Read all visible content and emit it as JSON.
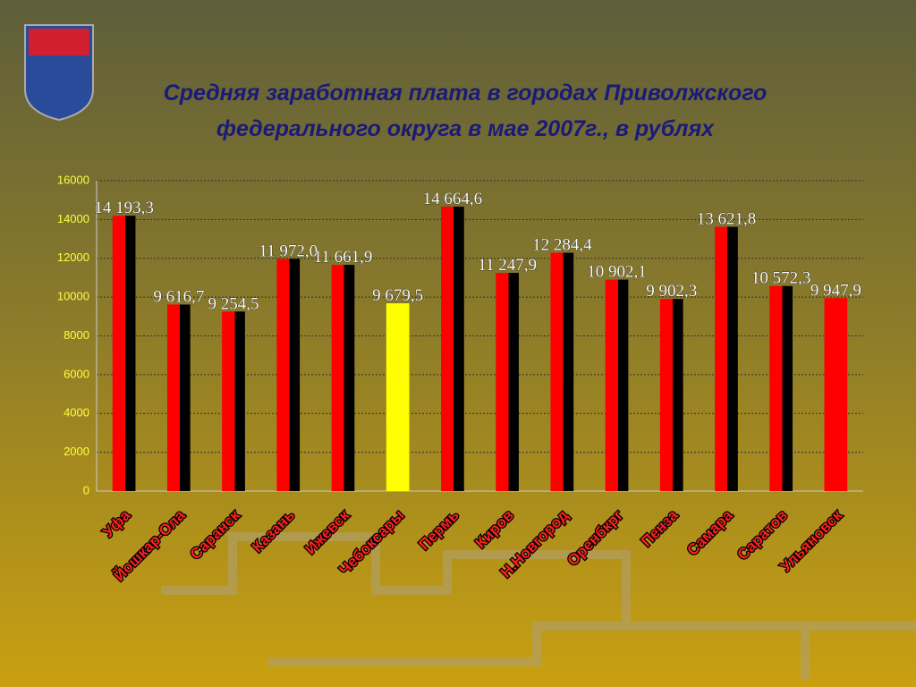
{
  "chart_data": {
    "type": "bar",
    "title": [
      "Средняя заработная плата в городах Приволжского",
      "федерального округа в мае 2007г., в рублях"
    ],
    "categories": [
      "Уфа",
      "Йошкар-Ола",
      "Саранск",
      "Казань",
      "Ижевск",
      "Чебоксары",
      "Пермь",
      "Киров",
      "Н.Новгород",
      "Оренбкрг",
      "Пенза",
      "Самара",
      "Саратов",
      "Ульяновск"
    ],
    "values": [
      14193.3,
      9616.7,
      9254.5,
      11972.0,
      11661.9,
      9679.5,
      14664.6,
      11247.9,
      12284.4,
      10902.1,
      9902.3,
      13621.8,
      10572.3,
      9947.9
    ],
    "value_labels": [
      "14 193,3",
      "9 616,7",
      "9 254,5",
      "11 972,0",
      "11 661,9",
      "9 679,5",
      "14 664,6",
      "11 247,9",
      "12 284,4",
      "10 902,1",
      "9 902,3",
      "13 621,8",
      "10 572,3",
      "9 947,9"
    ],
    "colors": [
      "#000000",
      "#000000",
      "#000000",
      "#000000",
      "#000000",
      "#ffff00",
      "#000000",
      "#000000",
      "#000000",
      "#000000",
      "#000000",
      "#000000",
      "#000000",
      "#ff0000"
    ],
    "ylim": [
      0,
      16000
    ],
    "yticks": [
      0,
      2000,
      4000,
      6000,
      8000,
      10000,
      12000,
      14000,
      16000
    ],
    "grid": true
  }
}
